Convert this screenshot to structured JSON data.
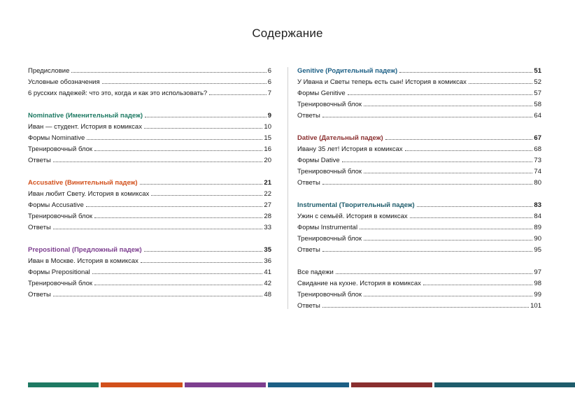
{
  "title": "Содержание",
  "left_column": [
    {
      "entries": [
        {
          "label": "Предисловие",
          "page": "6"
        },
        {
          "label": "Условные обозначения",
          "page": "6"
        },
        {
          "label": "6 русских падежей: что это, когда и как это использовать?",
          "page": "7"
        }
      ]
    },
    {
      "heading": {
        "label": "Nominative (Именительный падеж)",
        "page": "9",
        "color": "#1e7a63"
      },
      "entries": [
        {
          "label": "Иван — студент. История в комиксах",
          "page": "10"
        },
        {
          "label": "Формы Nominative",
          "page": "15"
        },
        {
          "label": "Тренировочный блок",
          "page": "16"
        },
        {
          "label": "Ответы",
          "page": "20"
        }
      ]
    },
    {
      "heading": {
        "label": "Accusative (Винительный падеж)",
        "page": "21",
        "color": "#d2501b"
      },
      "entries": [
        {
          "label": "Иван любит Свету. История в комиксах",
          "page": "22"
        },
        {
          "label": "Формы Accusative",
          "page": "27"
        },
        {
          "label": "Тренировочный блок",
          "page": "28"
        },
        {
          "label": "Ответы",
          "page": "33"
        }
      ]
    },
    {
      "heading": {
        "label": "Prepositional (Предложный падеж)",
        "page": "35",
        "color": "#7d3f8f"
      },
      "entries": [
        {
          "label": "Иван в Москве. История в комиксах",
          "page": "36"
        },
        {
          "label": "Формы Prepositional",
          "page": "41"
        },
        {
          "label": "Тренировочный блок",
          "page": "42"
        },
        {
          "label": "Ответы",
          "page": "48"
        }
      ]
    }
  ],
  "right_column": [
    {
      "heading": {
        "label": "Genitive (Родительный падеж)",
        "page": "51",
        "color": "#1c5f85"
      },
      "entries": [
        {
          "label": "У Ивана и Светы теперь есть сын! История в комиксах",
          "page": "52"
        },
        {
          "label": "Формы Genitive",
          "page": "57"
        },
        {
          "label": "Тренировочный блок",
          "page": "58"
        },
        {
          "label": "Ответы",
          "page": "64"
        }
      ]
    },
    {
      "heading": {
        "label": "Dative (Дательный падеж)",
        "page": "67",
        "color": "#8a2f2f"
      },
      "entries": [
        {
          "label": "Ивану 35 лет! История в комиксах",
          "page": "68"
        },
        {
          "label": "Формы Dative",
          "page": "73"
        },
        {
          "label": "Тренировочный блок",
          "page": "74"
        },
        {
          "label": "Ответы",
          "page": "80"
        }
      ]
    },
    {
      "heading": {
        "label": "Instrumental (Творительный падеж)",
        "page": "83",
        "color": "#1e5c6b"
      },
      "entries": [
        {
          "label": "Ужин с семьёй. История в комиксах",
          "page": "84"
        },
        {
          "label": "Формы Instrumental",
          "page": "89"
        },
        {
          "label": "Тренировочный блок",
          "page": "90"
        },
        {
          "label": "Ответы",
          "page": "95"
        }
      ]
    },
    {
      "entries": [
        {
          "label": "Все падежи",
          "page": "97"
        },
        {
          "label": "Свидание на кухне. История в комиксах",
          "page": "98"
        },
        {
          "label": "Тренировочный блок",
          "page": "99"
        },
        {
          "label": "Ответы",
          "page": "101"
        }
      ]
    }
  ],
  "color_bar": [
    "#1e7a63",
    "#d2501b",
    "#7d3f8f",
    "#1c5f85",
    "#8a2f2f",
    "#1e5c6b"
  ]
}
